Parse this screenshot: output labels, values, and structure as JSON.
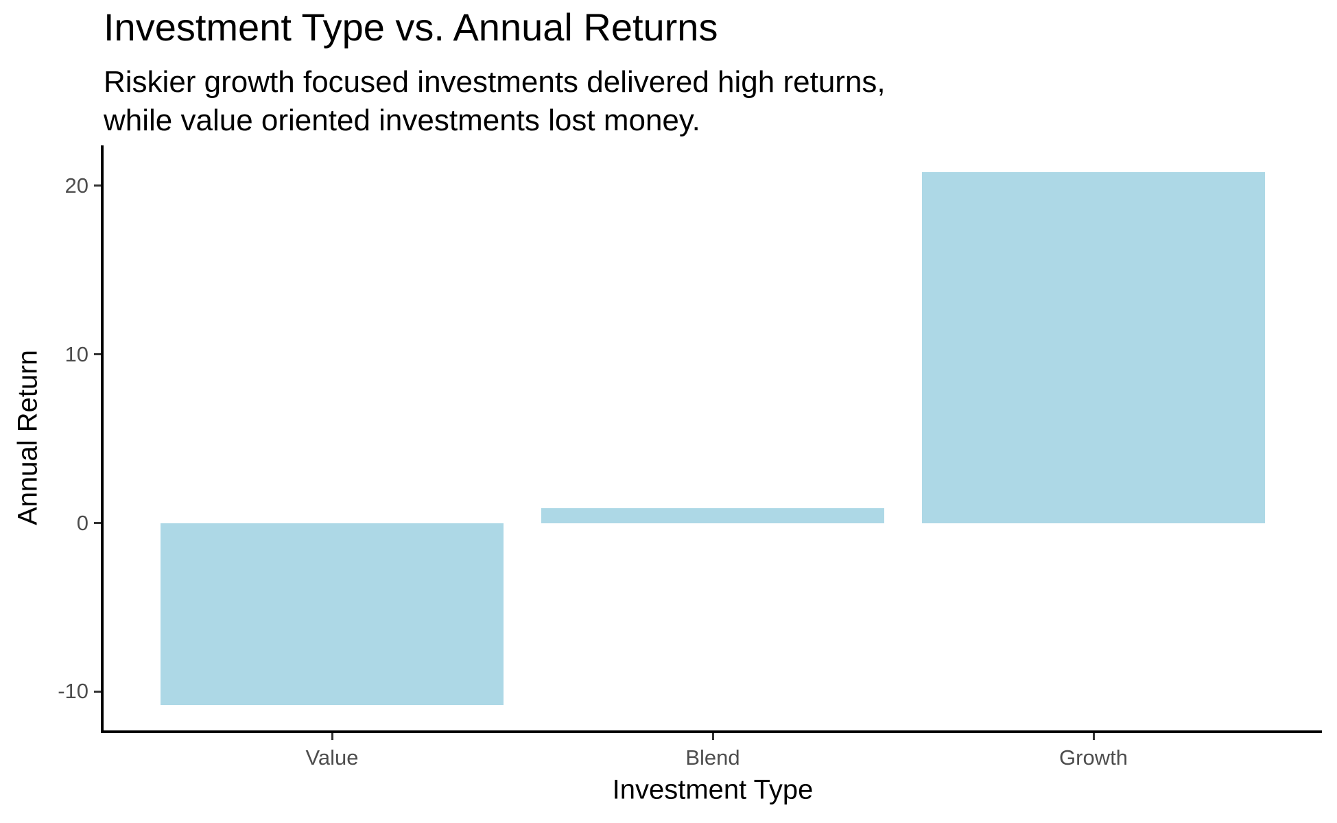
{
  "chart_data": {
    "type": "bar",
    "title": "Investment Type vs. Annual Returns",
    "subtitle": "Riskier growth focused investments delivered high returns,\nwhile value oriented investments lost money.",
    "xlabel": "Investment Type",
    "ylabel": "Annual Return",
    "categories": [
      "Value",
      "Blend",
      "Growth"
    ],
    "values": [
      -10.8,
      0.9,
      20.8
    ],
    "yticks": [
      20,
      10,
      0,
      -10
    ],
    "ylim": [
      -12.3,
      22.4
    ],
    "bar_color": "#ADD8E6",
    "tick_label_color": "#4d4d4d",
    "axis_color": "#000000",
    "grid": false,
    "legend": false,
    "legend_position": "none"
  }
}
